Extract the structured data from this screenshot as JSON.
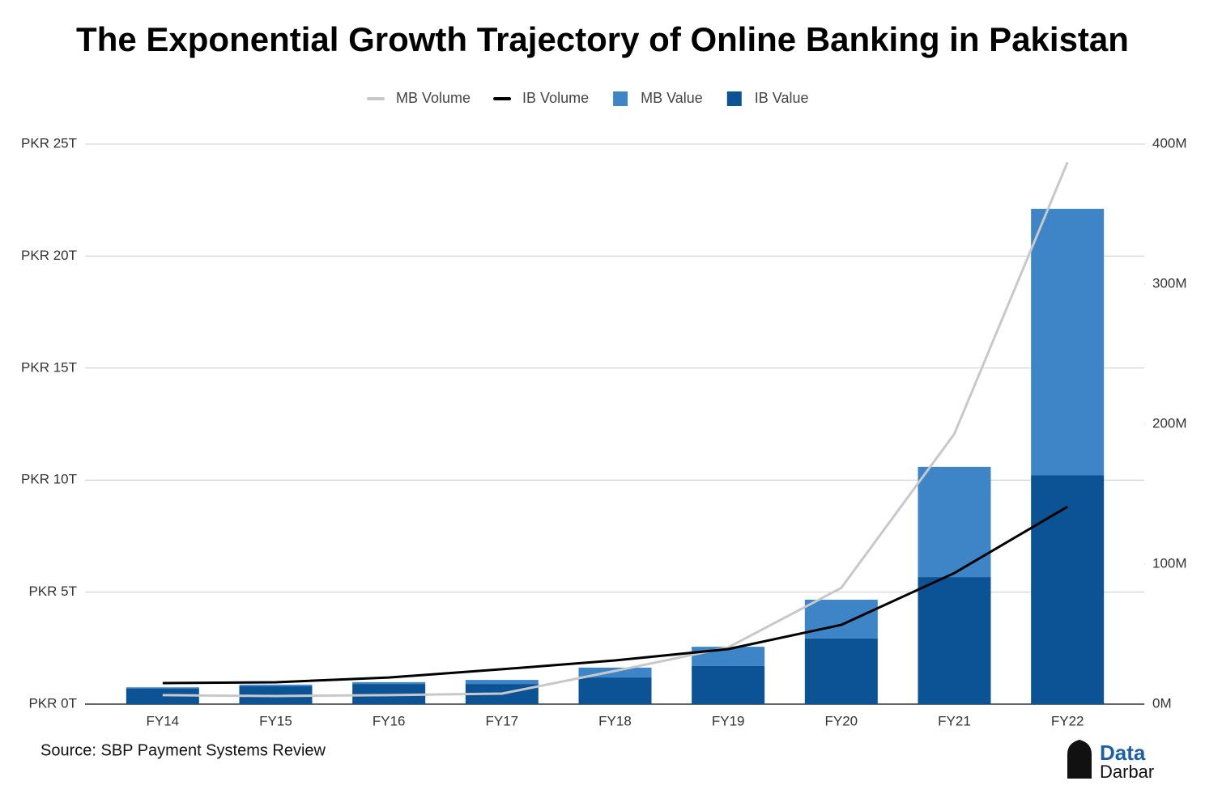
{
  "chart_data": {
    "type": "bar",
    "title": "The Exponential Growth Trajectory of Online Banking in Pakistan",
    "source": "Source: SBP Payment Systems Review",
    "logo": {
      "top": "Data",
      "bottom": "Darbar"
    },
    "categories": [
      "FY14",
      "FY15",
      "FY16",
      "FY17",
      "FY18",
      "FY19",
      "FY20",
      "FY21",
      "FY22"
    ],
    "series": [
      {
        "name": "MB Volume",
        "type": "line",
        "axis": "y2",
        "color": "#c8c8c8",
        "values": [
          6.4,
          5.8,
          6.4,
          7.5,
          23.7,
          40.5,
          83,
          193,
          387
        ]
      },
      {
        "name": "IB Volume",
        "type": "line",
        "axis": "y2",
        "color": "#000000",
        "values": [
          15,
          15.6,
          19,
          24.9,
          31.2,
          39.3,
          56.6,
          93.6,
          141
        ]
      },
      {
        "name": "MB Value",
        "type": "bar",
        "color": "#3d85c6",
        "values": [
          0.05,
          0.07,
          0.08,
          0.18,
          0.44,
          0.86,
          1.73,
          4.92,
          11.89
        ]
      },
      {
        "name": "IB Value",
        "type": "bar",
        "color": "#0b5394",
        "values": [
          0.7,
          0.8,
          0.9,
          0.9,
          1.19,
          1.7,
          2.93,
          5.67,
          10.22
        ]
      }
    ],
    "stacked": true,
    "ylim": [
      0,
      25
    ],
    "yticks": [
      {
        "value": 0,
        "label": "PKR 0T"
      },
      {
        "value": 5,
        "label": "PKR 5T"
      },
      {
        "value": 10,
        "label": "PKR 10T"
      },
      {
        "value": 15,
        "label": "PKR 15T"
      },
      {
        "value": 20,
        "label": "PKR 20T"
      },
      {
        "value": 25,
        "label": "PKR 25T"
      }
    ],
    "y2lim": [
      0,
      400
    ],
    "y2ticks": [
      {
        "value": 0,
        "label": "0M"
      },
      {
        "value": 100,
        "label": "100M"
      },
      {
        "value": 200,
        "label": "200M"
      },
      {
        "value": 300,
        "label": "300M"
      },
      {
        "value": 400,
        "label": "400M"
      }
    ],
    "grid": true,
    "legend": "top"
  }
}
